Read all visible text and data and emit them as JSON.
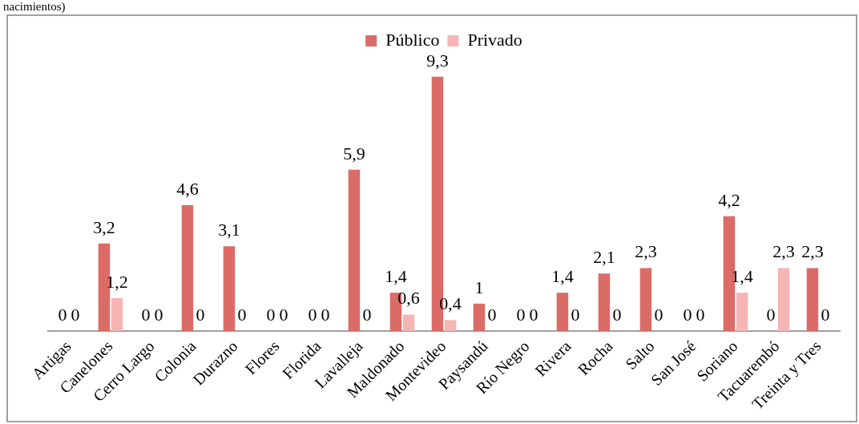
{
  "chart_data": {
    "type": "bar",
    "title": "nacimientos)",
    "categories": [
      "Artigas",
      "Canelones",
      "Cerro Largo",
      "Colonia",
      "Durazno",
      "Flores",
      "Florida",
      "Lavalleja",
      "Maldonado",
      "Montevideo",
      "Paysandú",
      "Río Negro",
      "Rivera",
      "Rocha",
      "Salto",
      "San José",
      "Soriano",
      "Tacuarembó",
      "Treinta y Tres"
    ],
    "series": [
      {
        "name": "Público",
        "color": "#db6b67",
        "values": [
          0,
          3.2,
          0,
          4.6,
          3.1,
          0,
          0,
          5.9,
          1.4,
          9.3,
          1,
          0,
          1.4,
          2.1,
          2.3,
          0,
          4.2,
          0,
          2.3
        ],
        "value_labels": [
          "0",
          "3,2",
          "0",
          "4,6",
          "3,1",
          "0",
          "0",
          "5,9",
          "1,4",
          "9,3",
          "1",
          "0",
          "1,4",
          "2,1",
          "2,3",
          "0",
          "4,2",
          "0",
          "2,3"
        ]
      },
      {
        "name": "Privado",
        "color": "#f5b5b4",
        "values": [
          0,
          1.2,
          0,
          0,
          0,
          0,
          0,
          0,
          0.6,
          0.4,
          0,
          0,
          0,
          0,
          0,
          0,
          1.4,
          2.3,
          0
        ],
        "value_labels": [
          "0",
          "1,2",
          "0",
          "0",
          "0",
          "0",
          "0",
          "0",
          "0,6",
          "0,4",
          "0",
          "0",
          "0",
          "0",
          "0",
          "0",
          "1,4",
          "2,3",
          "0"
        ]
      }
    ],
    "legend": "top",
    "grid": false,
    "tick_labels": "x"
  }
}
